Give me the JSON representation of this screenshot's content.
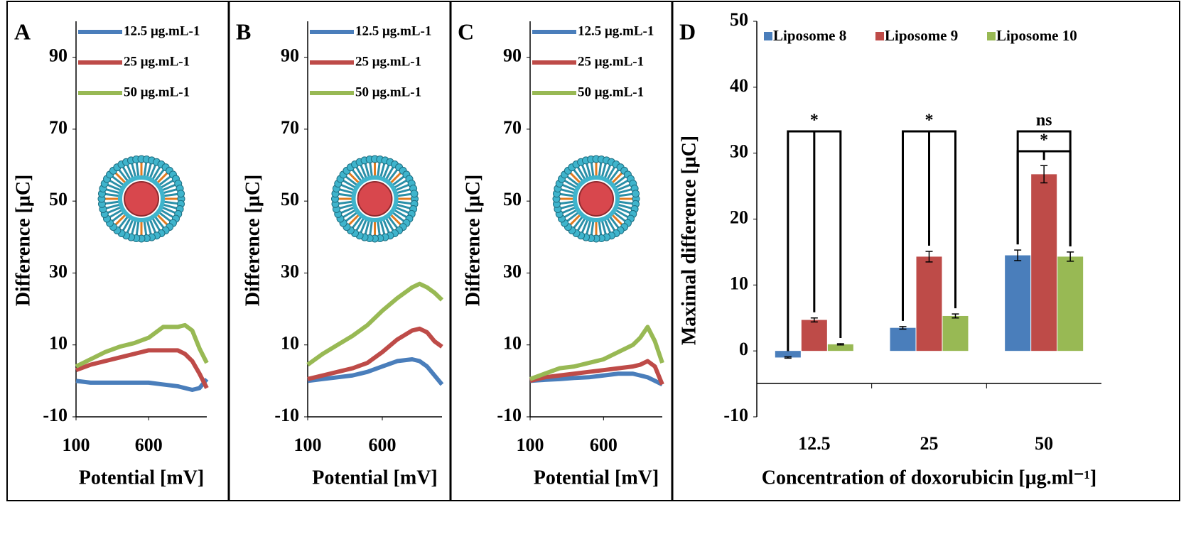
{
  "chart_data": [
    {
      "type": "line",
      "panel_label": "A",
      "xlabel": "Potential [mV]",
      "ylabel": "Difference [μC]",
      "x": [
        100,
        200,
        300,
        400,
        500,
        600,
        700,
        800,
        850,
        900,
        950,
        1000
      ],
      "xlim": [
        100,
        1000
      ],
      "xticks": [
        100,
        600
      ],
      "ylim": [
        -10,
        100
      ],
      "yticks": [
        -10,
        10,
        30,
        50,
        70,
        90
      ],
      "series": [
        {
          "name": "12.5 μg.mL-1",
          "color": "#4a7ebb",
          "values": [
            0,
            -0.5,
            -0.5,
            -0.5,
            -0.5,
            -0.5,
            -1,
            -1.5,
            -2,
            -2.5,
            -2,
            0.5
          ]
        },
        {
          "name": "25 μg.mL-1",
          "color": "#be4b48",
          "values": [
            3,
            4.5,
            5.5,
            6.5,
            7.5,
            8.5,
            8.5,
            8.5,
            7.5,
            5.5,
            2,
            -2
          ]
        },
        {
          "name": "50 μg.mL-1",
          "color": "#98b954",
          "values": [
            4,
            6,
            8,
            9.5,
            10.5,
            12,
            15,
            15,
            15.5,
            14,
            9,
            5
          ]
        }
      ]
    },
    {
      "type": "line",
      "panel_label": "B",
      "xlabel": "Potential [mV]",
      "ylabel": "Difference [μC]",
      "x": [
        100,
        200,
        300,
        400,
        500,
        600,
        700,
        800,
        850,
        900,
        950,
        1000
      ],
      "xlim": [
        100,
        1000
      ],
      "xticks": [
        100,
        600
      ],
      "ylim": [
        -10,
        100
      ],
      "yticks": [
        -10,
        10,
        30,
        50,
        70,
        90
      ],
      "series": [
        {
          "name": "12.5 μg.mL-1",
          "color": "#4a7ebb",
          "values": [
            0,
            0.5,
            1,
            1.5,
            2.5,
            4,
            5.5,
            6,
            5.5,
            4,
            1.5,
            -1
          ]
        },
        {
          "name": "25 μg.mL-1",
          "color": "#be4b48",
          "values": [
            0.5,
            1.5,
            2.5,
            3.5,
            5,
            8,
            11.5,
            14,
            14.5,
            13.5,
            11,
            9.5
          ]
        },
        {
          "name": "50 μg.mL-1",
          "color": "#98b954",
          "values": [
            4.5,
            7.5,
            10,
            12.5,
            15.5,
            19.5,
            23,
            26,
            27,
            26,
            24.5,
            22.5
          ]
        }
      ]
    },
    {
      "type": "line",
      "panel_label": "C",
      "xlabel": "Potential [mV]",
      "ylabel": "Difference [μC]",
      "x": [
        100,
        200,
        300,
        400,
        500,
        600,
        700,
        800,
        850,
        900,
        950,
        1000
      ],
      "xlim": [
        100,
        1000
      ],
      "xticks": [
        100,
        600
      ],
      "ylim": [
        -10,
        100
      ],
      "yticks": [
        -10,
        10,
        30,
        50,
        70,
        90
      ],
      "series": [
        {
          "name": "12.5 μg.mL-1",
          "color": "#4a7ebb",
          "values": [
            0,
            0.3,
            0.5,
            0.8,
            1,
            1.5,
            2,
            2,
            1.5,
            1,
            0,
            -1
          ]
        },
        {
          "name": "25 μg.mL-1",
          "color": "#be4b48",
          "values": [
            0,
            1,
            1.5,
            2,
            2.5,
            3,
            3.5,
            4,
            4.5,
            5.5,
            4,
            -1
          ]
        },
        {
          "name": "50 μg.mL-1",
          "color": "#98b954",
          "values": [
            0.5,
            2,
            3.5,
            4,
            5,
            6,
            8,
            10,
            12,
            15,
            11,
            5
          ]
        }
      ]
    },
    {
      "type": "bar",
      "panel_label": "D",
      "xlabel": "Concentration of doxorubicin [μg.ml⁻¹]",
      "ylabel": "Maximal difference [μC]",
      "categories": [
        "12.5",
        "25",
        "50"
      ],
      "ylim": [
        -10,
        50
      ],
      "yticks": [
        -10,
        0,
        10,
        20,
        30,
        40,
        50
      ],
      "series": [
        {
          "name": "Liposome 8",
          "color": "#4a7ebb",
          "values": [
            -1,
            3.5,
            14.5
          ],
          "errors": [
            0.1,
            0.2,
            0.8
          ]
        },
        {
          "name": "Liposome 9",
          "color": "#be4b48",
          "values": [
            4.7,
            14.3,
            26.8
          ],
          "errors": [
            0.3,
            0.8,
            1.3
          ]
        },
        {
          "name": "Liposome 10",
          "color": "#98b954",
          "values": [
            1,
            5.3,
            14.3
          ],
          "errors": [
            0.1,
            0.3,
            0.7
          ]
        }
      ],
      "annotations": [
        "*",
        "*",
        "ns",
        "*"
      ]
    }
  ]
}
